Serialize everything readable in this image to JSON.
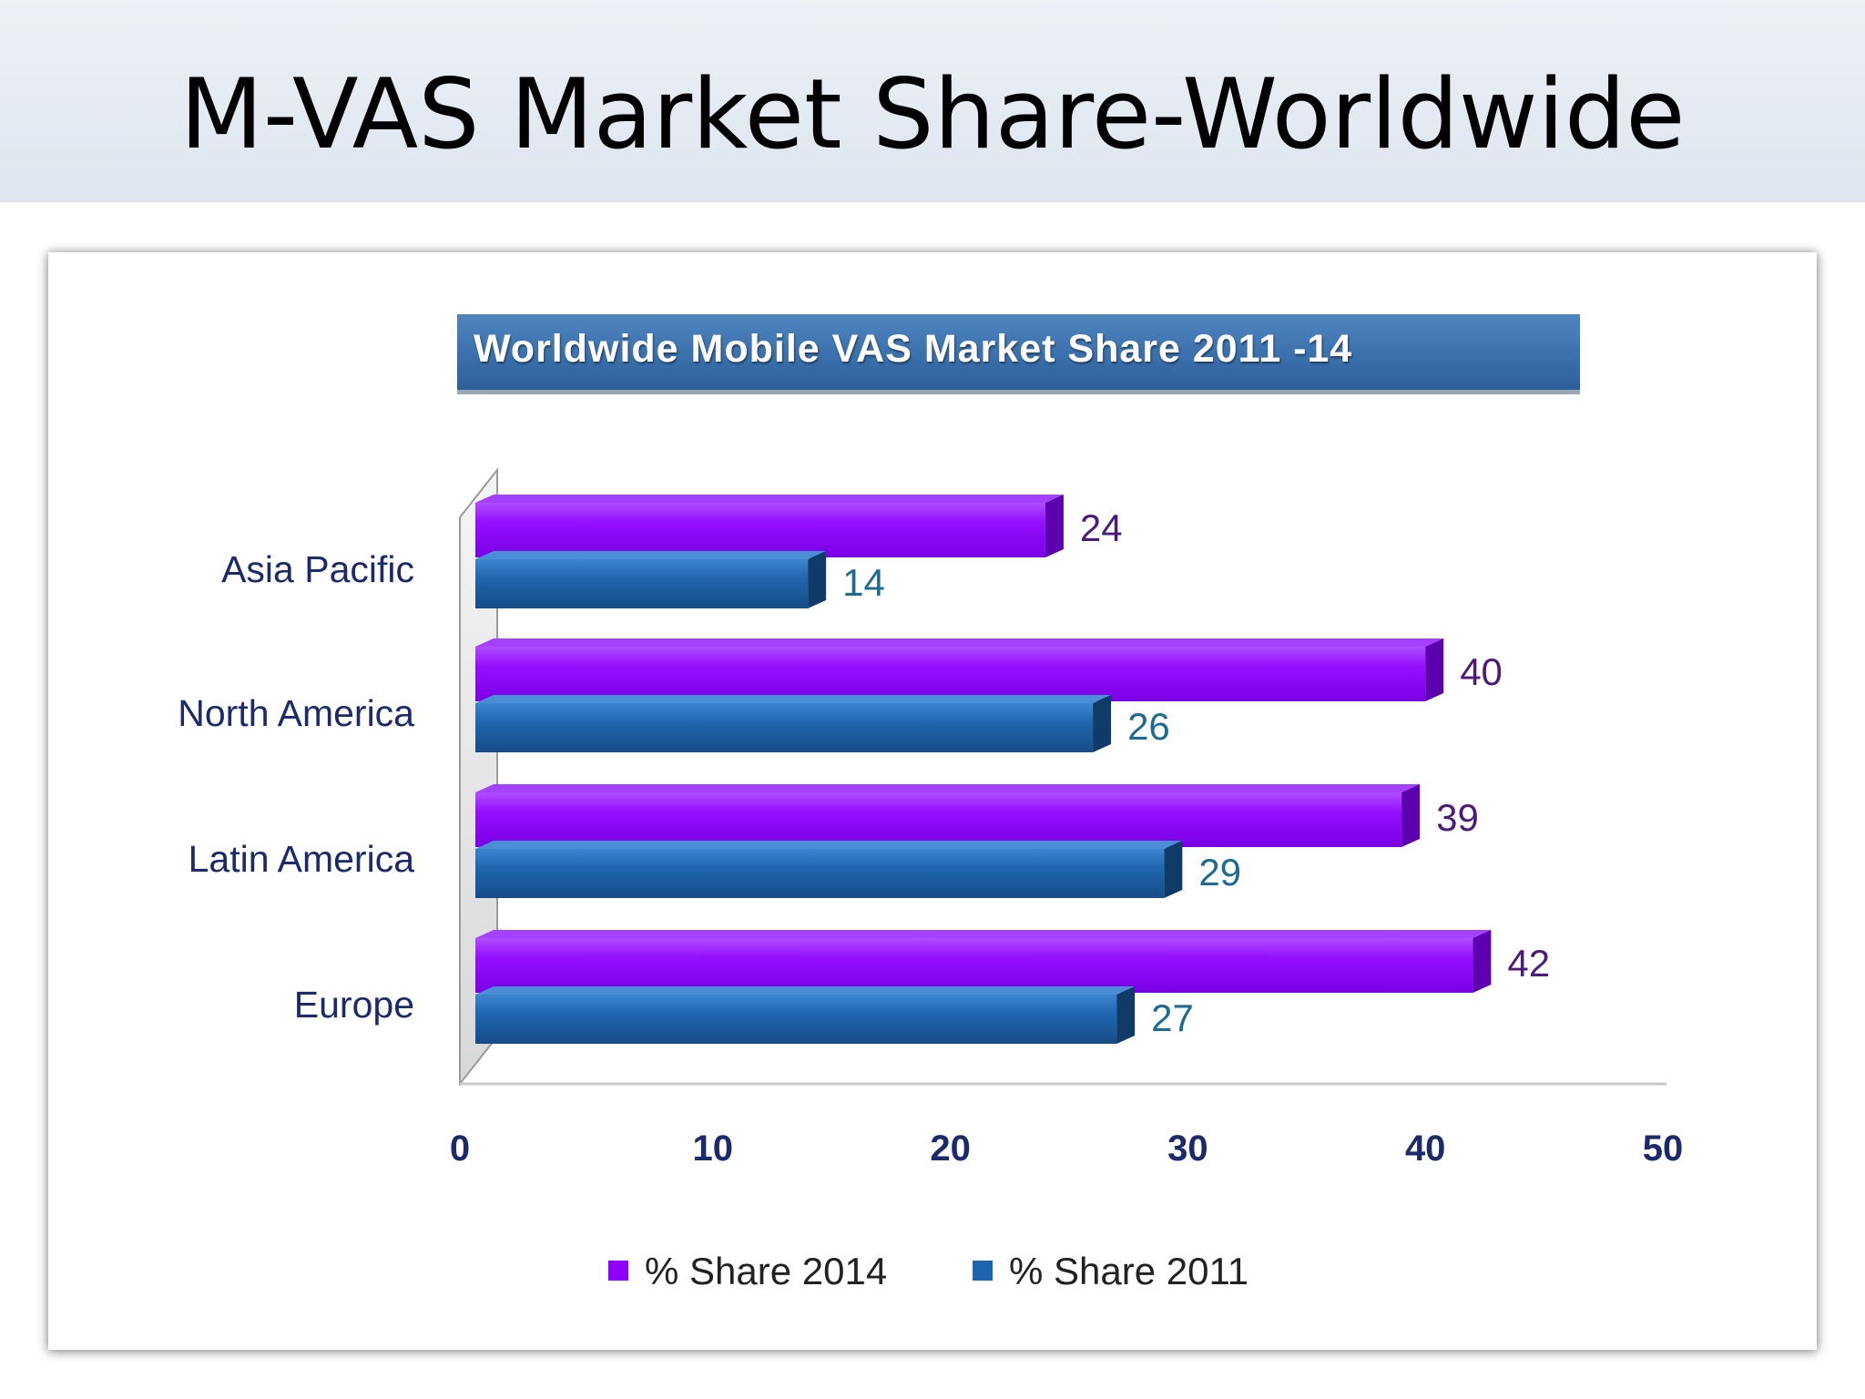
{
  "slide": {
    "title": "M-VAS Market Share-Worldwide"
  },
  "chart_data": {
    "type": "bar",
    "orientation": "horizontal",
    "title": "Worldwide Mobile VAS Market Share 2011 -14",
    "categories": [
      "Asia Pacific",
      "North America",
      "Latin America",
      "Europe"
    ],
    "series": [
      {
        "name": "% Share 2014",
        "values": [
          24,
          40,
          39,
          42
        ],
        "color": "#8c00ff"
      },
      {
        "name": "% Share 2011",
        "values": [
          14,
          26,
          29,
          27
        ],
        "color": "#1f65ad"
      }
    ],
    "xlim": [
      0,
      50
    ],
    "x_ticks": [
      "0",
      "10",
      "20",
      "30",
      "40",
      "50"
    ],
    "grid": false,
    "legend_position": "bottom",
    "data_labels": true,
    "colors": {
      "category_label": "#1a2a6c",
      "tick_label": "#1a2a6c",
      "label_2014": "#4b1a7a",
      "label_2011": "#1d6a95"
    }
  }
}
